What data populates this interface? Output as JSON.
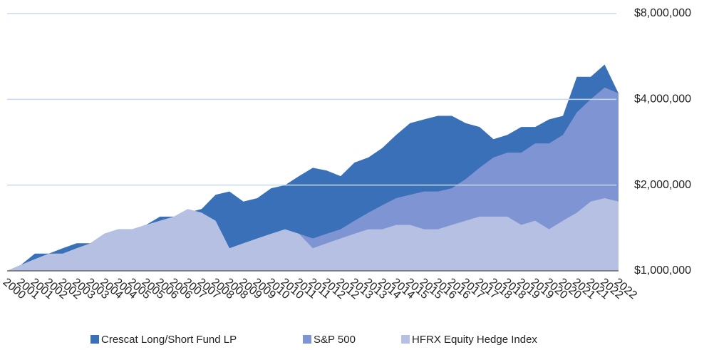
{
  "chart_data": {
    "type": "area",
    "log": true,
    "grid": true,
    "categories": [
      "2000",
      "2001",
      "2001",
      "2002",
      "2002",
      "2003",
      "2003",
      "2004",
      "2004",
      "2005",
      "2005",
      "2006",
      "2006",
      "2007",
      "2007",
      "2008",
      "2008",
      "2009",
      "2009",
      "2010",
      "2010",
      "2011",
      "2011",
      "2012",
      "2012",
      "2013",
      "2013",
      "2014",
      "2014",
      "2015",
      "2015",
      "2016",
      "2016",
      "2017",
      "2017",
      "2018",
      "2018",
      "2019",
      "2019",
      "2020",
      "2020",
      "2021",
      "2021",
      "2022",
      "2022"
    ],
    "series": [
      {
        "name": "Crescat Long/Short Fund LP",
        "color": "#3a70b8",
        "values": [
          1000000,
          1050000,
          1150000,
          1150000,
          1200000,
          1250000,
          1250000,
          1350000,
          1400000,
          1400000,
          1450000,
          1550000,
          1550000,
          1600000,
          1650000,
          1850000,
          1900000,
          1750000,
          1800000,
          1950000,
          2000000,
          2150000,
          2300000,
          2250000,
          2150000,
          2400000,
          2500000,
          2700000,
          3000000,
          3300000,
          3400000,
          3500000,
          3500000,
          3300000,
          3200000,
          2900000,
          3000000,
          3200000,
          3200000,
          3400000,
          3500000,
          4800000,
          4800000,
          5300000,
          4200000
        ]
      },
      {
        "name": "S&P 500",
        "color": "#7f95d3",
        "values": [
          1000000,
          1000000,
          1000000,
          1000000,
          1000000,
          1050000,
          1050000,
          1100000,
          1150000,
          1200000,
          1200000,
          1300000,
          1350000,
          1450000,
          1550000,
          1500000,
          1200000,
          1200000,
          1250000,
          1300000,
          1350000,
          1350000,
          1300000,
          1350000,
          1400000,
          1500000,
          1600000,
          1700000,
          1800000,
          1850000,
          1900000,
          1900000,
          1950000,
          2100000,
          2300000,
          2500000,
          2600000,
          2600000,
          2800000,
          2800000,
          3000000,
          3600000,
          4000000,
          4400000,
          4200000
        ]
      },
      {
        "name": "HFRX Equity Hedge Index",
        "color": "#b5c0e2",
        "values": [
          1000000,
          1050000,
          1100000,
          1150000,
          1150000,
          1200000,
          1250000,
          1350000,
          1400000,
          1400000,
          1450000,
          1500000,
          1550000,
          1650000,
          1600000,
          1500000,
          1200000,
          1250000,
          1300000,
          1350000,
          1400000,
          1350000,
          1200000,
          1250000,
          1300000,
          1350000,
          1400000,
          1400000,
          1450000,
          1450000,
          1400000,
          1400000,
          1450000,
          1500000,
          1550000,
          1550000,
          1550000,
          1450000,
          1500000,
          1400000,
          1500000,
          1600000,
          1750000,
          1800000,
          1750000
        ]
      }
    ],
    "ylim": [
      1000000,
      8000000
    ],
    "yticks": [
      {
        "value": 1000000,
        "label": "$1,000,000"
      },
      {
        "value": 2000000,
        "label": "$2,000,000"
      },
      {
        "value": 4000000,
        "label": "$4,000,000"
      },
      {
        "value": 8000000,
        "label": "$8,000,000"
      }
    ]
  }
}
